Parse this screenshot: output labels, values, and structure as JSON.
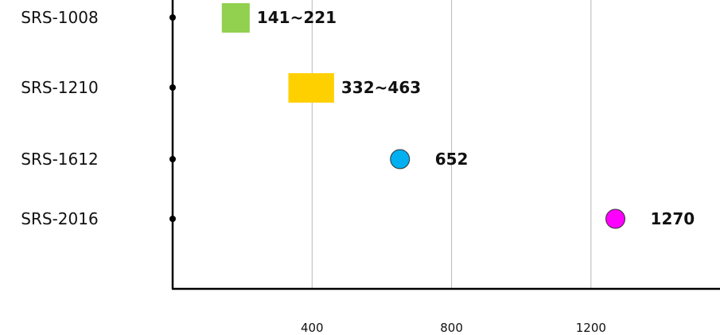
{
  "chart_data": {
    "type": "scatter",
    "title": "",
    "xlabel": "",
    "ylabel": "",
    "grid": "vertical",
    "xlim": [
      0,
      1570
    ],
    "categories": [
      "SRS-1008",
      "SRS-1210",
      "SRS-1612",
      "SRS-2016"
    ],
    "x_ticks": [
      "400",
      "800",
      "1200"
    ],
    "x_tick_values": [
      400,
      800,
      1200
    ],
    "items": [
      {
        "category": "SRS-1008",
        "shape": "range",
        "low": 141,
        "high": 221,
        "label": "141~221",
        "color": "#92d050"
      },
      {
        "category": "SRS-1210",
        "shape": "range",
        "low": 332,
        "high": 463,
        "label": "332~463",
        "color": "#ffd000"
      },
      {
        "category": "SRS-1612",
        "shape": "point",
        "value": 652,
        "label": "652",
        "color": "#00b0f0"
      },
      {
        "category": "SRS-2016",
        "shape": "point",
        "value": 1270,
        "label": "1270",
        "color": "#ff00ff"
      }
    ]
  }
}
